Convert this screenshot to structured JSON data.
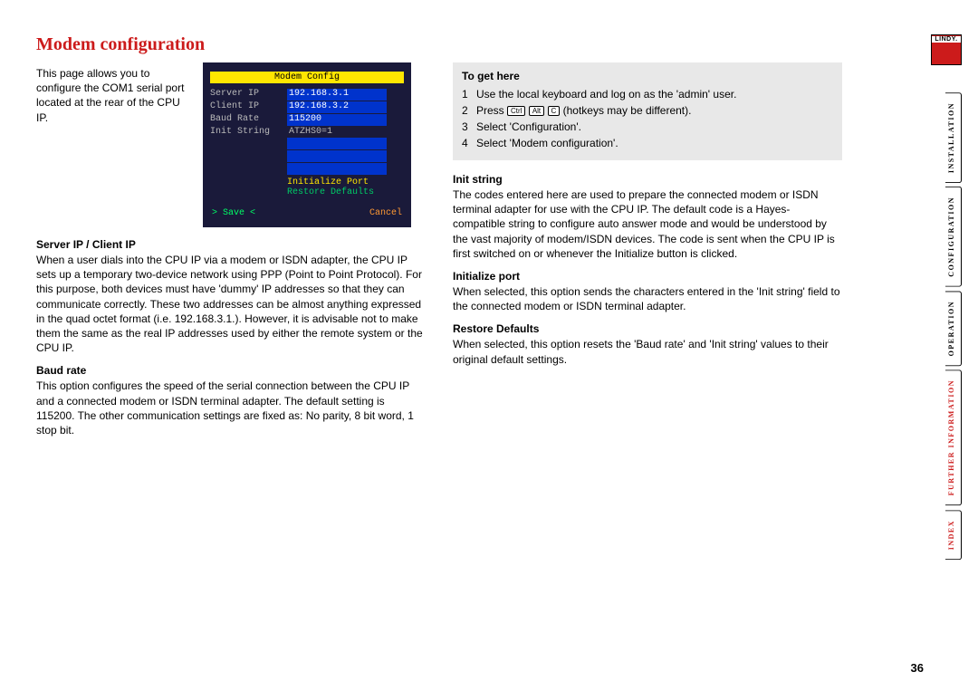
{
  "title": "Modem configuration",
  "intro": "This page allows you to configure the COM1 serial port located at the rear of the CPU IP.",
  "screenshot": {
    "heading": "Modem Config",
    "rows": [
      {
        "label": "Server IP",
        "value": "192.168.3.1"
      },
      {
        "label": "Client IP",
        "value": "192.168.3.2"
      },
      {
        "label": "Baud Rate",
        "value": "115200"
      },
      {
        "label": "Init String",
        "value": "ATZHS0=1"
      }
    ],
    "initialize": "Initialize Port",
    "restore": "Restore Defaults",
    "save": "> Save <",
    "cancel": "Cancel"
  },
  "left_sections": [
    {
      "h": "Server IP / Client IP",
      "p": "When a user dials into the CPU IP via a modem or ISDN adapter, the CPU IP sets up a temporary two-device network using PPP (Point to Point Protocol). For this purpose, both devices must have 'dummy' IP addresses so that they can communicate correctly. These two addresses can be almost anything expressed in the quad octet format (i.e. 192.168.3.1.). However, it is advisable not to make them the same as the real IP addresses used by either the remote system or the CPU IP."
    },
    {
      "h": "Baud rate",
      "p": "This option configures the speed of the serial connection between the CPU IP and a connected modem or ISDN terminal adapter. The default setting is 115200. The other communication settings are fixed as: No parity, 8 bit word, 1 stop bit."
    }
  ],
  "togethere": {
    "h": "To get here",
    "items": [
      "Use the local keyboard and log on as the 'admin' user.",
      "Press |Ctrl| |Alt| |C| (hotkeys may be different).",
      "Select 'Configuration'.",
      "Select 'Modem configuration'."
    ]
  },
  "right_sections": [
    {
      "h": "Init string",
      "p": "The codes entered here are used to prepare the connected modem or ISDN terminal adapter for use with the CPU IP. The default code is a Hayes-compatible string to configure auto answer mode and would be understood by the vast majority of modem/ISDN devices. The code is sent when the CPU IP is first switched on or whenever the Initialize button is clicked."
    },
    {
      "h": "Initialize port",
      "p": "When selected, this option sends the characters entered in the 'Init string' field to the connected modem or ISDN terminal adapter."
    },
    {
      "h": "Restore Defaults",
      "p": "When selected, this option resets the 'Baud rate' and 'Init string' values to their original default settings."
    }
  ],
  "sidenav": {
    "logo": "LINDY.",
    "tabs": [
      {
        "label": "INSTALLATION",
        "red": false
      },
      {
        "label": "CONFIGURATION",
        "red": false
      },
      {
        "label": "OPERATION",
        "red": false
      },
      {
        "label": "FURTHER INFORMATION",
        "red": true
      },
      {
        "label": "INDEX",
        "red": true
      }
    ]
  },
  "pagenum": "36"
}
